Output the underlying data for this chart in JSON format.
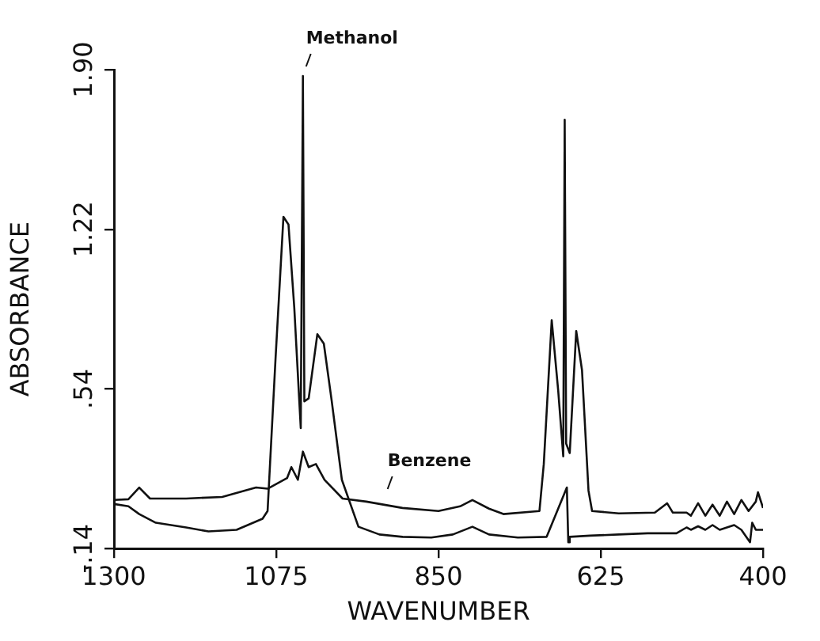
{
  "chart_data": {
    "type": "line",
    "xlabel": "WAVENUMBER",
    "ylabel": "ABSORBANCE",
    "xlim": [
      1300,
      400
    ],
    "xticks": [
      1300,
      1075,
      850,
      625,
      400
    ],
    "ylim": [
      -0.14,
      1.9
    ],
    "yticks": [
      {
        "value": -0.14,
        "label": "-.14"
      },
      {
        "value": 0.54,
        "label": ".54"
      },
      1.22,
      {
        "value": 1.9,
        "label": "1.90"
      }
    ],
    "grid": false,
    "legend": false,
    "marker": "none",
    "line_style": "solid",
    "annotations": [
      {
        "text": "Methanol",
        "x": 1038,
        "y": 1.873
      },
      {
        "text": "Benzene",
        "x": 925,
        "y": 0.073
      }
    ],
    "series": [
      {
        "color": "#111111",
        "x": [
          1300,
          1280,
          1265,
          1242,
          1200,
          1169,
          1130,
          1094,
          1087,
          1076,
          1065,
          1058,
          1050,
          1041,
          1038,
          1036,
          1030,
          1018,
          1009,
          998,
          984,
          961,
          932,
          900,
          860,
          830,
          803,
          780,
          740,
          700,
          672,
          670,
          668,
          640,
          600,
          560,
          520,
          506,
          500,
          490,
          480,
          470,
          460,
          450,
          440,
          430,
          418,
          415,
          410,
          400
        ],
        "values": [
          0.05,
          0.04,
          0.007,
          -0.03,
          -0.05,
          -0.067,
          -0.06,
          -0.013,
          0.02,
          0.667,
          1.273,
          1.24,
          0.887,
          0.373,
          1.873,
          0.487,
          0.5,
          0.773,
          0.733,
          0.487,
          0.153,
          -0.047,
          -0.08,
          -0.09,
          -0.093,
          -0.08,
          -0.047,
          -0.08,
          -0.093,
          -0.09,
          0.12,
          -0.113,
          -0.09,
          -0.085,
          -0.08,
          -0.075,
          -0.075,
          -0.05,
          -0.06,
          -0.045,
          -0.06,
          -0.04,
          -0.06,
          -0.05,
          -0.04,
          -0.06,
          -0.113,
          -0.03,
          -0.06,
          -0.06
        ]
      },
      {
        "color": "#111111",
        "x": [
          1300,
          1280,
          1265,
          1250,
          1200,
          1150,
          1103,
          1087,
          1060,
          1054,
          1045,
          1038,
          1030,
          1020,
          1008,
          983,
          950,
          900,
          850,
          820,
          803,
          780,
          760,
          710,
          704,
          693,
          684,
          677,
          675,
          673,
          668,
          659,
          651,
          642,
          637,
          600,
          550,
          533,
          525,
          506,
          500,
          490,
          480,
          470,
          460,
          450,
          440,
          430,
          420,
          410,
          407,
          400
        ],
        "values": [
          0.067,
          0.07,
          0.12,
          0.073,
          0.073,
          0.08,
          0.12,
          0.115,
          0.16,
          0.207,
          0.153,
          0.273,
          0.207,
          0.22,
          0.153,
          0.073,
          0.06,
          0.033,
          0.02,
          0.04,
          0.067,
          0.03,
          0.007,
          0.02,
          0.22,
          0.833,
          0.533,
          0.253,
          1.687,
          0.307,
          0.267,
          0.787,
          0.62,
          0.107,
          0.02,
          0.01,
          0.013,
          0.053,
          0.013,
          0.013,
          0.0,
          0.053,
          0.0,
          0.047,
          0.0,
          0.06,
          0.007,
          0.067,
          0.02,
          0.06,
          0.1,
          0.033
        ]
      }
    ]
  }
}
